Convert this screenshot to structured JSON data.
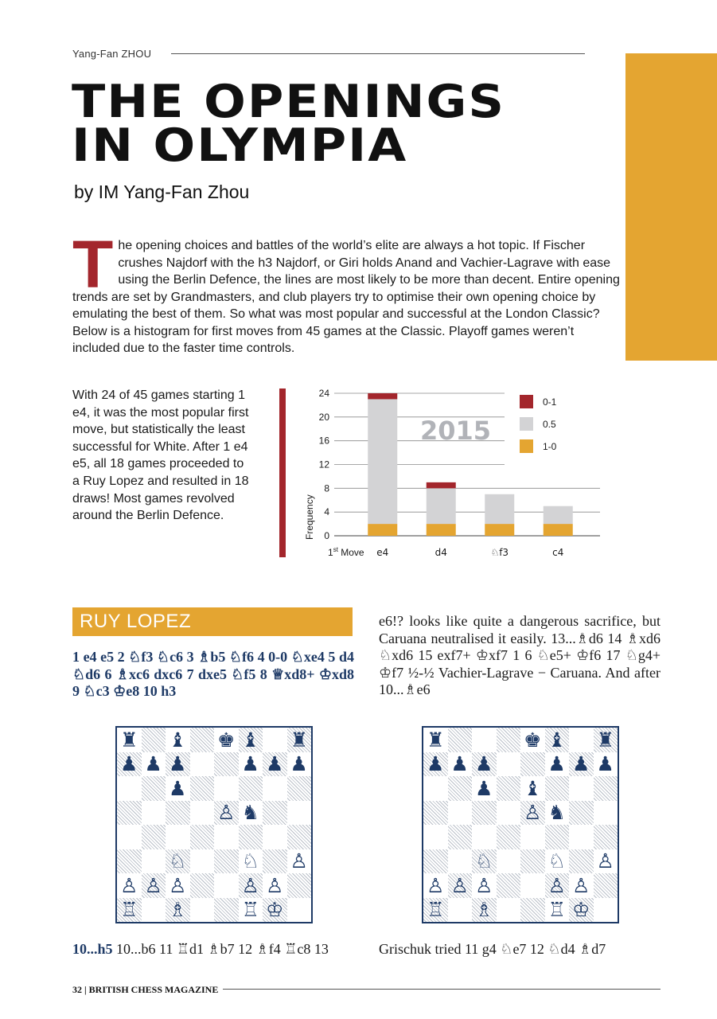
{
  "header": {
    "author_tag": "Yang-Fan ZHOU"
  },
  "article": {
    "title_line1": "THE OPENINGS",
    "title_line2": "IN OLYMPIA",
    "byline": "by IM Yang-Fan Zhou",
    "intro_dropcap": "T",
    "intro_text": "he opening choices and battles of the world’s elite are always a hot topic. If Fischer crushes Najdorf with the h3 Najdorf, or Giri holds Anand and Vachier-Lagrave with ease using the Berlin Defence, the lines are most likely to be more than decent. Entire opening trends are set by Grandmasters, and club players try to optimise their own opening choice by emulating the best of them. So what was most popular and successful at the London Classic?  Below is a histogram for first moves from 45 games at the Classic. Playoff games weren’t included due to the faster time controls.",
    "side_text": "With 24 of 45 games starting 1 e4, it was the most popular first move, but statistically the least successful for White. After 1 e4 e5, all 18 games proceeded to a Ruy Lopez and resulted in 18 draws! Most games revolved around the Berlin Defence."
  },
  "chart_data": {
    "type": "bar",
    "stacked": true,
    "annotation": "2015",
    "xlabel_prefix": "1",
    "xlabel_sup": "st",
    "xlabel_suffix": " Move",
    "ylabel": "Frequency",
    "categories": [
      "e4",
      "d4",
      "♘f3",
      "c4"
    ],
    "ylim": [
      0,
      24
    ],
    "yticks": [
      0,
      4,
      8,
      12,
      16,
      20,
      24
    ],
    "grid": true,
    "legend_position": "top-right",
    "series": [
      {
        "name": "1-0",
        "color": "#e4a531",
        "values": [
          2,
          2,
          2,
          2
        ]
      },
      {
        "name": "0.5",
        "color": "#d3d3d5",
        "values": [
          21,
          6,
          5,
          3
        ]
      },
      {
        "name": "0-1",
        "color": "#a3262c",
        "values": [
          1,
          1,
          0,
          0
        ]
      }
    ]
  },
  "section": {
    "heading": "RUY LOPEZ",
    "moves": "1 e4 e5 2 ♘f3 ♘c6 3 ♗b5 ♘f6 4 0-0 ♘xe4 5 d4 ♘d6 6 ♗xc6 dxc6 7 dxe5 ♘f5 8 ♕xd8+ ♔xd8 9 ♘c3 ♔e8 10 h3",
    "right_text": "e6!? looks like quite a dangerous sacrifice, but Caruana neutralised it easily. 13...♗d6 14 ♗xd6 ♘xd6 15 exf7+ ♔xf7 1 6 ♘e5+ ♔f6 17 ♘g4+ ♔f7 ½-½ Vachier-Lagrave − Caruana. And after 10...♗e6",
    "bottom_left_bold": "10...h5",
    "bottom_left_rest": " 10...b6 11 ♖d1 ♗b7 12 ♗f4 ♖c8 13",
    "bottom_right": "Grischuk tried 11 g4 ♘e7 12 ♘d4 ♗d7"
  },
  "boards": [
    {
      "name": "diagram-1",
      "fen": "r1b1kb1r/ppp2ppp/2p5/4Pn2/8/2N2N1P/PPP2PP1/R1B2RK1"
    },
    {
      "name": "diagram-2",
      "fen": "r3kb1r/ppp2ppp/2p1b3/4Pn2/8/2N2N1P/PPP2PP1/R1B2RK1"
    }
  ],
  "footer": {
    "page_label": "32 | BRITISH CHESS MAGAZINE"
  }
}
